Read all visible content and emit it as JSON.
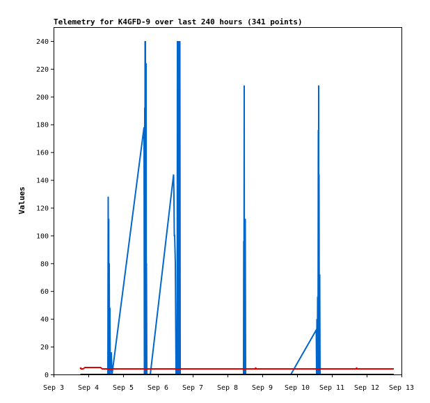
{
  "chart_data": {
    "type": "line",
    "title": "Telemetry for K4GFD-9 over last 240 hours (341 points)",
    "xlabel": "",
    "ylabel": "Values",
    "x_unit": "days (Sep)",
    "xlim": [
      3,
      13
    ],
    "ylim": [
      0,
      250
    ],
    "x_ticks": [
      {
        "value": 3,
        "label": "Sep 3"
      },
      {
        "value": 4,
        "label": "Sep 4"
      },
      {
        "value": 5,
        "label": "Sep 5"
      },
      {
        "value": 6,
        "label": "Sep 6"
      },
      {
        "value": 7,
        "label": "Sep 7"
      },
      {
        "value": 8,
        "label": "Sep 8"
      },
      {
        "value": 9,
        "label": "Sep 9"
      },
      {
        "value": 10,
        "label": "Sep 10"
      },
      {
        "value": 11,
        "label": "Sep 11"
      },
      {
        "value": 12,
        "label": "Sep 12"
      },
      {
        "value": 13,
        "label": "Sep 13"
      }
    ],
    "y_ticks": [
      0,
      20,
      40,
      60,
      80,
      100,
      120,
      140,
      160,
      180,
      200,
      220,
      240
    ],
    "legend": "none",
    "grid": false,
    "series": [
      {
        "color": "#0066cc",
        "points": [
          [
            4.56,
            0
          ],
          [
            4.57,
            128
          ],
          [
            4.58,
            0
          ],
          [
            4.585,
            112
          ],
          [
            4.59,
            0
          ],
          [
            4.6,
            80
          ],
          [
            4.61,
            0
          ],
          [
            4.62,
            48
          ],
          [
            4.63,
            0
          ],
          [
            4.66,
            16
          ],
          [
            4.68,
            0
          ],
          [
            5.6,
            178
          ],
          [
            5.61,
            0
          ],
          [
            5.62,
            192
          ],
          [
            5.625,
            0
          ],
          [
            5.63,
            240
          ],
          [
            5.635,
            0
          ],
          [
            5.64,
            240
          ],
          [
            5.645,
            0
          ],
          [
            5.65,
            224
          ],
          [
            5.655,
            0
          ],
          [
            5.66,
            224
          ],
          [
            5.665,
            0
          ],
          [
            5.67,
            80
          ],
          [
            5.68,
            0
          ],
          [
            5.78,
            0
          ],
          [
            6.45,
            144
          ],
          [
            6.46,
            128
          ],
          [
            6.47,
            100
          ],
          [
            6.48,
            100
          ],
          [
            6.5,
            80
          ],
          [
            6.51,
            40
          ],
          [
            6.52,
            0
          ],
          [
            6.53,
            24
          ],
          [
            6.55,
            0
          ],
          [
            6.56,
            240
          ],
          [
            6.565,
            0
          ],
          [
            6.57,
            240
          ],
          [
            6.575,
            0
          ],
          [
            6.58,
            240
          ],
          [
            6.585,
            0
          ],
          [
            6.59,
            240
          ],
          [
            6.595,
            0
          ],
          [
            6.6,
            240
          ],
          [
            6.605,
            0
          ],
          [
            6.61,
            240
          ],
          [
            6.62,
            0
          ],
          [
            6.63,
            240
          ],
          [
            6.64,
            0
          ],
          [
            8.46,
            0
          ],
          [
            8.465,
            96
          ],
          [
            8.47,
            0
          ],
          [
            8.48,
            208
          ],
          [
            8.485,
            0
          ],
          [
            8.49,
            32
          ],
          [
            8.5,
            0
          ],
          [
            8.51,
            112
          ],
          [
            8.52,
            0
          ],
          [
            9.82,
            0
          ],
          [
            10.55,
            32
          ],
          [
            10.56,
            0
          ],
          [
            10.57,
            40
          ],
          [
            10.58,
            0
          ],
          [
            10.59,
            56
          ],
          [
            10.6,
            0
          ],
          [
            10.61,
            176
          ],
          [
            10.615,
            0
          ],
          [
            10.62,
            208
          ],
          [
            10.625,
            0
          ],
          [
            10.63,
            144
          ],
          [
            10.64,
            0
          ],
          [
            10.65,
            72
          ],
          [
            10.66,
            0
          ]
        ]
      },
      {
        "color": "#e00000",
        "points": [
          [
            3.77,
            4
          ],
          [
            3.78,
            5
          ],
          [
            3.79,
            4
          ],
          [
            3.8,
            4
          ],
          [
            3.85,
            4
          ],
          [
            3.9,
            5
          ],
          [
            4.0,
            5
          ],
          [
            4.1,
            5
          ],
          [
            4.2,
            5
          ],
          [
            4.35,
            5
          ],
          [
            4.4,
            4
          ],
          [
            4.5,
            4
          ],
          [
            5.0,
            4
          ],
          [
            6.0,
            4
          ],
          [
            7.0,
            4
          ],
          [
            8.0,
            4
          ],
          [
            8.8,
            4
          ],
          [
            8.81,
            5
          ],
          [
            8.82,
            4
          ],
          [
            9.0,
            4
          ],
          [
            10.0,
            4
          ],
          [
            11.0,
            4
          ],
          [
            11.7,
            4
          ],
          [
            11.71,
            5
          ],
          [
            11.72,
            4
          ],
          [
            12.0,
            4
          ],
          [
            12.78,
            4
          ]
        ]
      },
      {
        "color": "#000000",
        "points": [
          [
            3.77,
            0
          ],
          [
            12.78,
            0
          ]
        ]
      }
    ]
  }
}
